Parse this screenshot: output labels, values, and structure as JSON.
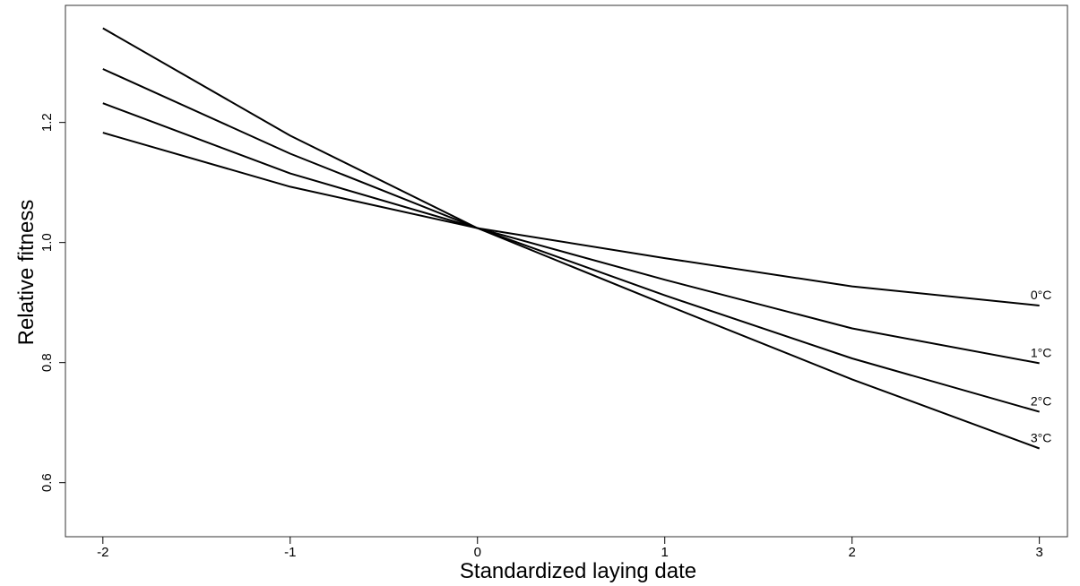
{
  "chart_data": {
    "type": "line",
    "title": "",
    "xlabel": "Standardized laying date",
    "ylabel": "Relative fitness",
    "x": [
      -2,
      -1,
      0,
      1,
      2,
      3
    ],
    "xlim": [
      -2.2,
      3.15
    ],
    "ylim": [
      0.51,
      1.395
    ],
    "x_ticks": [
      -2,
      -1,
      0,
      1,
      2,
      3
    ],
    "x_tick_labels": [
      "-2",
      "-1",
      "0",
      "1",
      "2",
      "3"
    ],
    "y_ticks": [
      0.6,
      0.8,
      1.0,
      1.2
    ],
    "y_tick_labels": [
      "0.6",
      "0.8",
      "1.0",
      "1.2"
    ],
    "grid": false,
    "legend": "none",
    "series": [
      {
        "name": "0°C",
        "values": [
          1.183,
          1.093,
          1.024,
          0.974,
          0.927,
          0.895
        ]
      },
      {
        "name": "1°C",
        "values": [
          1.232,
          1.115,
          1.024,
          0.938,
          0.857,
          0.799
        ]
      },
      {
        "name": "2°C",
        "values": [
          1.289,
          1.148,
          1.024,
          0.912,
          0.807,
          0.718
        ]
      },
      {
        "name": "3°C",
        "values": [
          1.357,
          1.178,
          1.024,
          0.897,
          0.772,
          0.657
        ]
      }
    ],
    "line_color": "#000000"
  }
}
